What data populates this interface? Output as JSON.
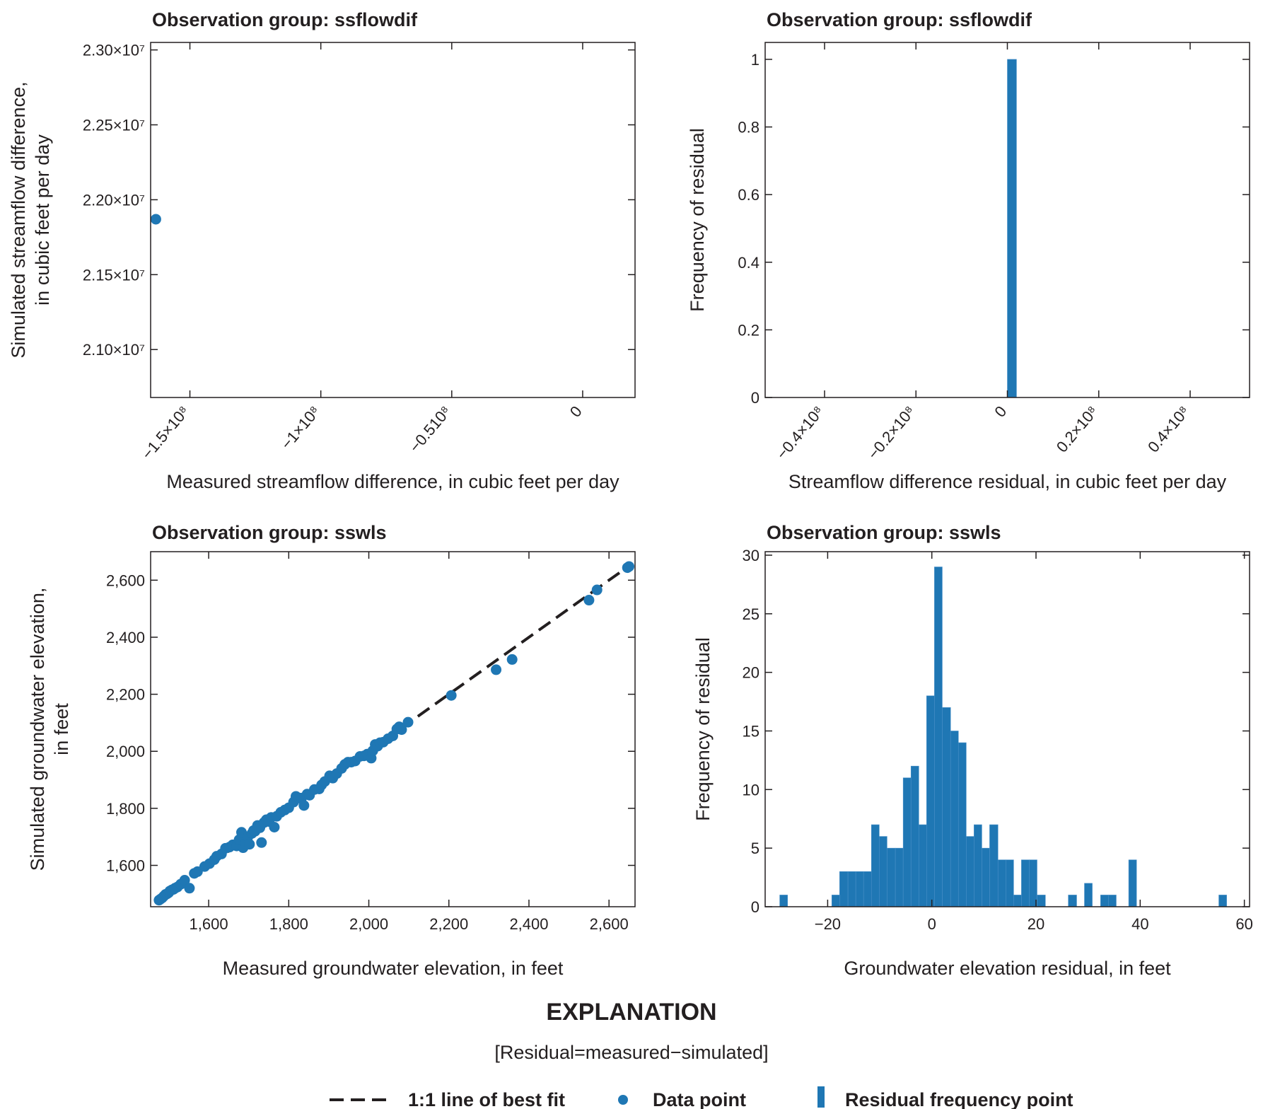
{
  "colors": {
    "accent": "#1f77b4",
    "ink": "#231f20"
  },
  "chart_data": [
    {
      "id": "p1",
      "type": "scatter",
      "title": "Observation group: ssflowdif",
      "xlabel": "Measured streamflow difference, in cubic feet per day",
      "ylabel_lines": [
        "Simulated streamflow difference,",
        "in cubic feet per day"
      ],
      "xlim": [
        -165000000,
        20000000
      ],
      "ylim": [
        20680000,
        23050000
      ],
      "xticks": [
        {
          "v": -150000000,
          "t": "−1.5×10⁸"
        },
        {
          "v": -100000000,
          "t": "−1×10⁸"
        },
        {
          "v": -50000000,
          "t": "−0.510⁸"
        },
        {
          "v": 0,
          "t": "0"
        }
      ],
      "yticks": [
        {
          "v": 21000000,
          "t": "2.10×10⁷"
        },
        {
          "v": 21500000,
          "t": "2.15×10⁷"
        },
        {
          "v": 22000000,
          "t": "2.20×10⁷"
        },
        {
          "v": 22500000,
          "t": "2.25×10⁷"
        },
        {
          "v": 23000000,
          "t": "2.30×10⁷"
        }
      ],
      "points": [
        [
          -163000000,
          21870000
        ]
      ],
      "grid": false
    },
    {
      "id": "p2",
      "type": "bar",
      "title": "Observation group: ssflowdif",
      "xlabel": "Streamflow difference residual, in cubic feet per day",
      "ylabel_lines": [
        "Frequency of residual"
      ],
      "xlim": [
        -53000000,
        53000000
      ],
      "ylim": [
        0,
        1.05
      ],
      "xticks": [
        {
          "v": -40000000,
          "t": "−0.4×10⁸"
        },
        {
          "v": -20000000,
          "t": "−0.2×10⁸"
        },
        {
          "v": 0,
          "t": "0"
        },
        {
          "v": 20000000,
          "t": "0.2×10⁸"
        },
        {
          "v": 40000000,
          "t": "0.4×10⁸"
        }
      ],
      "yticks": [
        {
          "v": 0,
          "t": "0"
        },
        {
          "v": 0.2,
          "t": "0.2"
        },
        {
          "v": 0.4,
          "t": "0.4"
        },
        {
          "v": 0.6,
          "t": "0.6"
        },
        {
          "v": 0.8,
          "t": "0.8"
        },
        {
          "v": 1,
          "t": "1"
        }
      ],
      "bars": [
        {
          "x0": 0,
          "x1": 2000000,
          "y": 1
        }
      ],
      "grid": false
    },
    {
      "id": "p3",
      "type": "scatter",
      "title": "Observation group: sswls",
      "xlabel": "Measured groundwater elevation, in feet",
      "ylabel_lines": [
        "Simulated groundwater elevation,",
        "in feet"
      ],
      "xlim": [
        1455,
        2665
      ],
      "ylim": [
        1455,
        2700
      ],
      "xticks": [
        {
          "v": 1600,
          "t": "1,600"
        },
        {
          "v": 1800,
          "t": "1,800"
        },
        {
          "v": 2000,
          "t": "2,000"
        },
        {
          "v": 2200,
          "t": "2,200"
        },
        {
          "v": 2400,
          "t": "2,400"
        },
        {
          "v": 2600,
          "t": "2,600"
        }
      ],
      "yticks": [
        {
          "v": 1600,
          "t": "1,600"
        },
        {
          "v": 1800,
          "t": "1,800"
        },
        {
          "v": 2000,
          "t": "2,000"
        },
        {
          "v": 2200,
          "t": "2,200"
        },
        {
          "v": 2400,
          "t": "2,400"
        },
        {
          "v": 2600,
          "t": "2,600"
        }
      ],
      "fit_line": [
        [
          1475,
          1475
        ],
        [
          2650,
          2650
        ]
      ],
      "points": [
        [
          1476,
          1478
        ],
        [
          1480,
          1482
        ],
        [
          1484,
          1486
        ],
        [
          1488,
          1492
        ],
        [
          1492,
          1498
        ],
        [
          1496,
          1500
        ],
        [
          1500,
          1504
        ],
        [
          1503,
          1510
        ],
        [
          1508,
          1514
        ],
        [
          1512,
          1516
        ],
        [
          1516,
          1520
        ],
        [
          1522,
          1524
        ],
        [
          1530,
          1534
        ],
        [
          1540,
          1548
        ],
        [
          1552,
          1520
        ],
        [
          1564,
          1572
        ],
        [
          1572,
          1578
        ],
        [
          1590,
          1596
        ],
        [
          1602,
          1606
        ],
        [
          1614,
          1620
        ],
        [
          1620,
          1632
        ],
        [
          1632,
          1640
        ],
        [
          1642,
          1660
        ],
        [
          1652,
          1664
        ],
        [
          1660,
          1672
        ],
        [
          1670,
          1668
        ],
        [
          1676,
          1690
        ],
        [
          1682,
          1716
        ],
        [
          1686,
          1662
        ],
        [
          1692,
          1678
        ],
        [
          1698,
          1700
        ],
        [
          1702,
          1674
        ],
        [
          1708,
          1712
        ],
        [
          1712,
          1722
        ],
        [
          1716,
          1720
        ],
        [
          1722,
          1740
        ],
        [
          1728,
          1732
        ],
        [
          1732,
          1680
        ],
        [
          1738,
          1750
        ],
        [
          1744,
          1760
        ],
        [
          1750,
          1754
        ],
        [
          1756,
          1768
        ],
        [
          1764,
          1734
        ],
        [
          1770,
          1772
        ],
        [
          1780,
          1786
        ],
        [
          1790,
          1794
        ],
        [
          1800,
          1802
        ],
        [
          1812,
          1822
        ],
        [
          1818,
          1842
        ],
        [
          1826,
          1836
        ],
        [
          1832,
          1836
        ],
        [
          1838,
          1810
        ],
        [
          1846,
          1850
        ],
        [
          1852,
          1846
        ],
        [
          1864,
          1866
        ],
        [
          1876,
          1868
        ],
        [
          1882,
          1882
        ],
        [
          1890,
          1894
        ],
        [
          1902,
          1914
        ],
        [
          1910,
          1906
        ],
        [
          1920,
          1922
        ],
        [
          1932,
          1940
        ],
        [
          1940,
          1954
        ],
        [
          1948,
          1962
        ],
        [
          1956,
          1962
        ],
        [
          1966,
          1966
        ],
        [
          1978,
          1982
        ],
        [
          1988,
          1984
        ],
        [
          1996,
          1990
        ],
        [
          2006,
          1976
        ],
        [
          2010,
          2002
        ],
        [
          2016,
          2024
        ],
        [
          2022,
          2018
        ],
        [
          2028,
          2030
        ],
        [
          2036,
          2032
        ],
        [
          2048,
          2044
        ],
        [
          2060,
          2054
        ],
        [
          2070,
          2078
        ],
        [
          2076,
          2086
        ],
        [
          2082,
          2076
        ],
        [
          2098,
          2102
        ],
        [
          2206,
          2196
        ],
        [
          2318,
          2286
        ],
        [
          2358,
          2322
        ],
        [
          2550,
          2530
        ],
        [
          2570,
          2566
        ],
        [
          2646,
          2644
        ],
        [
          2650,
          2648
        ]
      ],
      "grid": false
    },
    {
      "id": "p4",
      "type": "bar",
      "title": "Observation group: sswls",
      "xlabel": "Groundwater elevation residual, in feet",
      "ylabel_lines": [
        "Frequency of residual"
      ],
      "xlim": [
        -32,
        61
      ],
      "ylim": [
        0,
        30.3
      ],
      "xticks": [
        {
          "v": -20,
          "t": "−20"
        },
        {
          "v": 0,
          "t": "0"
        },
        {
          "v": 20,
          "t": "20"
        },
        {
          "v": 40,
          "t": "40"
        },
        {
          "v": 60,
          "t": "60"
        }
      ],
      "yticks": [
        {
          "v": 0,
          "t": "0"
        },
        {
          "v": 5,
          "t": "5"
        },
        {
          "v": 10,
          "t": "10"
        },
        {
          "v": 15,
          "t": "15"
        },
        {
          "v": 20,
          "t": "20"
        },
        {
          "v": 25,
          "t": "25"
        },
        {
          "v": 30,
          "t": "30"
        }
      ],
      "bars": [
        {
          "x0": -29.2,
          "x1": -27.7,
          "y": 1
        },
        {
          "x0": -19.2,
          "x1": -17.7,
          "y": 1
        },
        {
          "x0": -17.7,
          "x1": -16.1,
          "y": 3
        },
        {
          "x0": -16.1,
          "x1": -14.6,
          "y": 3
        },
        {
          "x0": -14.6,
          "x1": -13.1,
          "y": 3
        },
        {
          "x0": -13.1,
          "x1": -11.6,
          "y": 3
        },
        {
          "x0": -11.6,
          "x1": -10.1,
          "y": 7
        },
        {
          "x0": -10.1,
          "x1": -8.6,
          "y": 6
        },
        {
          "x0": -8.6,
          "x1": -7.0,
          "y": 5
        },
        {
          "x0": -7.0,
          "x1": -5.5,
          "y": 5
        },
        {
          "x0": -5.5,
          "x1": -4.0,
          "y": 11
        },
        {
          "x0": -4.0,
          "x1": -2.5,
          "y": 12
        },
        {
          "x0": -2.5,
          "x1": -1.0,
          "y": 7
        },
        {
          "x0": -1.0,
          "x1": 0.5,
          "y": 18
        },
        {
          "x0": 0.5,
          "x1": 2.0,
          "y": 29
        },
        {
          "x0": 2.0,
          "x1": 3.6,
          "y": 17
        },
        {
          "x0": 3.6,
          "x1": 5.1,
          "y": 15
        },
        {
          "x0": 5.1,
          "x1": 6.6,
          "y": 14
        },
        {
          "x0": 6.6,
          "x1": 8.1,
          "y": 6
        },
        {
          "x0": 8.1,
          "x1": 9.6,
          "y": 7
        },
        {
          "x0": 9.6,
          "x1": 11.1,
          "y": 5
        },
        {
          "x0": 11.1,
          "x1": 12.7,
          "y": 7
        },
        {
          "x0": 12.7,
          "x1": 14.2,
          "y": 4
        },
        {
          "x0": 14.2,
          "x1": 15.7,
          "y": 4
        },
        {
          "x0": 15.7,
          "x1": 17.2,
          "y": 1
        },
        {
          "x0": 17.2,
          "x1": 18.7,
          "y": 4
        },
        {
          "x0": 18.7,
          "x1": 20.2,
          "y": 4
        },
        {
          "x0": 20.2,
          "x1": 21.8,
          "y": 1
        },
        {
          "x0": 26.2,
          "x1": 27.8,
          "y": 1
        },
        {
          "x0": 29.3,
          "x1": 30.8,
          "y": 2
        },
        {
          "x0": 32.4,
          "x1": 33.9,
          "y": 1
        },
        {
          "x0": 33.9,
          "x1": 35.4,
          "y": 1
        },
        {
          "x0": 37.8,
          "x1": 39.3,
          "y": 4
        },
        {
          "x0": 55.1,
          "x1": 56.6,
          "y": 1
        }
      ],
      "grid": false
    }
  ],
  "explanation": {
    "title": "EXPLANATION",
    "subtitle": "[Residual=measured−simulated]",
    "legend": {
      "fit_line": "1:1 line of best fit",
      "data_point": "Data point",
      "residual_point": "Residual frequency point"
    }
  }
}
